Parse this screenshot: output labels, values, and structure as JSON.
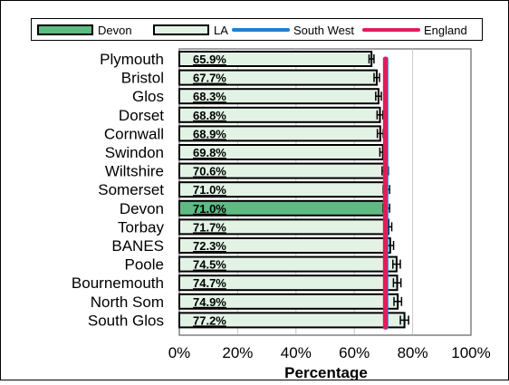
{
  "chart_data": {
    "type": "bar",
    "orientation": "horizontal",
    "title": "",
    "xlabel": "Percentage",
    "ylabel": "",
    "xlim": [
      0,
      100
    ],
    "x_ticks": [
      0,
      20,
      40,
      60,
      80,
      100
    ],
    "x_tick_labels": [
      "0%",
      "20%",
      "40%",
      "60%",
      "80%",
      "100%"
    ],
    "grid": "vertical",
    "legend_position": "top",
    "categories": [
      "Plymouth",
      "Bristol",
      "Glos",
      "Dorset",
      "Cornwall",
      "Swindon",
      "Wiltshire",
      "Somerset",
      "Devon",
      "Torbay",
      "BANES",
      "Poole",
      "Bournemouth",
      "North Som",
      "South Glos"
    ],
    "values": [
      65.9,
      67.7,
      68.3,
      68.8,
      68.9,
      69.8,
      70.6,
      71.0,
      71.0,
      71.7,
      72.3,
      74.5,
      74.7,
      74.9,
      77.2
    ],
    "value_labels": [
      "65.9%",
      "67.7%",
      "68.3%",
      "68.8%",
      "68.9%",
      "69.8%",
      "70.6%",
      "71.0%",
      "71.0%",
      "71.7%",
      "72.3%",
      "74.5%",
      "74.7%",
      "74.9%",
      "77.2%"
    ],
    "error_bars": true,
    "highlight_category": "Devon",
    "reference_lines": [
      {
        "name": "South West",
        "value": 70.9,
        "color": "#1f7fd1"
      },
      {
        "name": "England",
        "value": 70.6,
        "color": "#e31b5f"
      }
    ],
    "legend": [
      {
        "name": "Devon",
        "kind": "bar",
        "color": "#5fba84"
      },
      {
        "name": "LA",
        "kind": "bar",
        "color": "#e2f3e6"
      },
      {
        "name": "South West",
        "kind": "line",
        "color": "#1f7fd1"
      },
      {
        "name": "England",
        "kind": "line",
        "color": "#e31b5f"
      }
    ],
    "colors": {
      "highlight_bar": "#5fba84",
      "bar": "#e2f3e6",
      "bar_stroke": "#000000",
      "plot_bg": "#ffffff"
    }
  }
}
